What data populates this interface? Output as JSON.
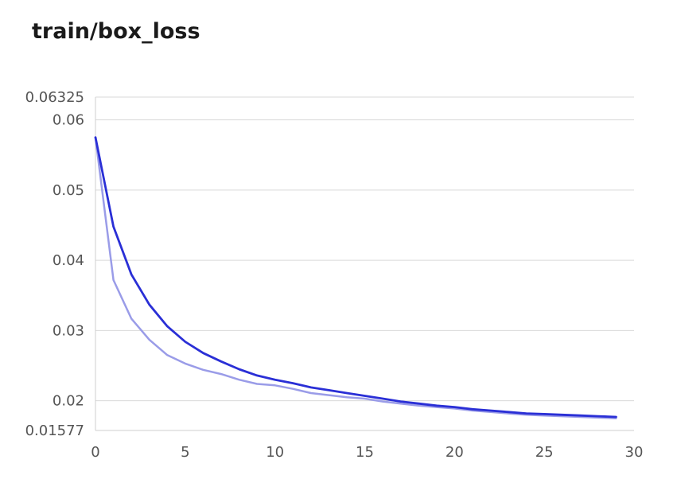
{
  "chart_data": {
    "type": "line",
    "title": "train/box_loss",
    "xlabel": "",
    "ylabel": "",
    "xlim": [
      0,
      30
    ],
    "ylim": [
      0.01577,
      0.06325
    ],
    "xticks": [
      "0",
      "5",
      "10",
      "15",
      "20",
      "25",
      "30"
    ],
    "yticks": [
      {
        "value": 0.06325,
        "label": "0.06325"
      },
      {
        "value": 0.06,
        "label": "0.06"
      },
      {
        "value": 0.05,
        "label": "0.05"
      },
      {
        "value": 0.04,
        "label": "0.04"
      },
      {
        "value": 0.03,
        "label": "0.03"
      },
      {
        "value": 0.02,
        "label": "0.02"
      },
      {
        "value": 0.01577,
        "label": "0.01577"
      }
    ],
    "grid": true,
    "legend": "none",
    "x": [
      0,
      1,
      2,
      3,
      4,
      5,
      6,
      7,
      8,
      9,
      10,
      11,
      12,
      13,
      14,
      15,
      16,
      17,
      18,
      19,
      20,
      21,
      22,
      23,
      24,
      25,
      26,
      27,
      28,
      29
    ],
    "series": [
      {
        "color": "#9a9ce8",
        "values": [
          0.0575,
          0.0372,
          0.0317,
          0.0287,
          0.0265,
          0.0253,
          0.0244,
          0.0238,
          0.023,
          0.0224,
          0.0222,
          0.0217,
          0.0211,
          0.0208,
          0.0205,
          0.0203,
          0.0199,
          0.0196,
          0.0193,
          0.0191,
          0.0189,
          0.0186,
          0.0184,
          0.0182,
          0.018,
          0.0179,
          0.0178,
          0.0177,
          0.0176,
          0.0175
        ]
      },
      {
        "color": "#2a2fd6",
        "values": [
          0.0575,
          0.0448,
          0.038,
          0.0337,
          0.0306,
          0.0284,
          0.0268,
          0.0256,
          0.0245,
          0.0236,
          0.023,
          0.0225,
          0.0219,
          0.0215,
          0.0211,
          0.0207,
          0.0203,
          0.0199,
          0.0196,
          0.0193,
          0.0191,
          0.0188,
          0.0186,
          0.0184,
          0.0182,
          0.0181,
          0.018,
          0.0179,
          0.0178,
          0.0177
        ]
      }
    ]
  }
}
